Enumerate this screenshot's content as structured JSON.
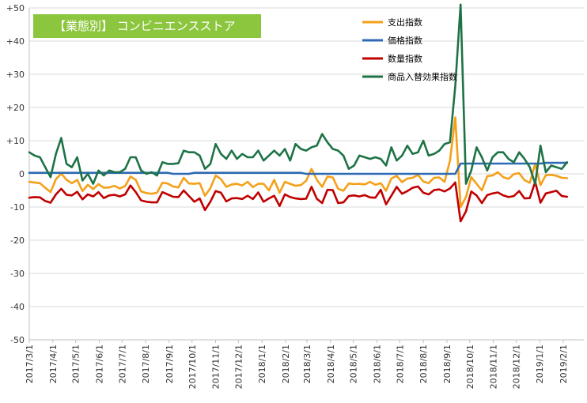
{
  "banner": {
    "label": "【業態別】 コンビニエンスストア"
  },
  "chart_data": {
    "type": "line",
    "title": "【業態別】 コンビニエンスストア",
    "xlabel": "",
    "ylabel": "",
    "ylim": [
      -50,
      50
    ],
    "y_ticks": [
      50,
      40,
      30,
      20,
      10,
      0,
      -10,
      -20,
      -30,
      -40,
      -50
    ],
    "y_tick_labels": [
      "+50",
      "+40",
      "+30",
      "+20",
      "+10",
      "0",
      "-10",
      "-20",
      "-30",
      "-40",
      "-50"
    ],
    "x_tick_labels": [
      "2017/3/1",
      "2017/4/1",
      "2017/5/1",
      "2017/6/1",
      "2017/7/1",
      "2017/8/1",
      "2017/9/1",
      "2017/10/1",
      "2017/11/1",
      "2017/12/1",
      "2018/1/1",
      "2018/2/1",
      "2018/3/1",
      "2018/4/1",
      "2018/5/1",
      "2018/6/1",
      "2018/7/1",
      "2018/8/1",
      "2018/9/1",
      "2018/10/1",
      "2018/11/1",
      "2018/12/1",
      "2019/1/1",
      "2019/2/1"
    ],
    "x_start": "2017/3/1",
    "x_end": "2019/2/28",
    "x_interval_days": 7,
    "grid": true,
    "legend_position": "top-right",
    "series": [
      {
        "name": "支出指数",
        "color": "#f5a01a",
        "values": [
          -2.4,
          -2.6,
          -2.8,
          -4.2,
          -5.5,
          -1.6,
          0.1,
          -1.8,
          -2.8,
          -1.8,
          -5.2,
          -3.3,
          -4.6,
          -3.1,
          -4.2,
          -4.1,
          -3.6,
          -4.4,
          -3.7,
          -0.8,
          -1.8,
          -5.3,
          -5.8,
          -6.0,
          -5.7,
          -2.7,
          -2.9,
          -3.8,
          -4.1,
          -1.2,
          -2.9,
          -3.0,
          -2.8,
          -6.6,
          -4.3,
          -0.5,
          -1.6,
          -3.9,
          -3.2,
          -3.0,
          -3.5,
          -2.4,
          -4.0,
          -3.0,
          -3.0,
          -5.0,
          -1.8,
          -5.7,
          -2.4,
          -3.0,
          -3.6,
          -3.4,
          -2.1,
          1.5,
          -1.8,
          -3.9,
          -0.8,
          -1.1,
          -4.5,
          -5.1,
          -2.9,
          -3.1,
          -3.0,
          -3.2,
          -2.4,
          -3.3,
          -2.8,
          -5.1,
          -1.4,
          -0.6,
          -2.5,
          -1.4,
          -1.2,
          -0.3,
          -2.3,
          -2.8,
          -1.2,
          -1.1,
          -2.4,
          4.0,
          17.0,
          -10.0,
          -7.0,
          -1.0,
          -3.0,
          -5.0,
          -0.7,
          -0.5,
          0.5,
          -1.0,
          -1.5,
          -0.1,
          0.2,
          -1.9,
          -2.7,
          3.0,
          -3.4,
          -0.4,
          -0.3,
          -0.6,
          -1.2,
          -1.3
        ]
      },
      {
        "name": "価格指数",
        "color": "#2e6ab3",
        "values": [
          0.3,
          0.3,
          0.3,
          0.3,
          0.3,
          0.3,
          0.3,
          0.3,
          0.3,
          0.3,
          0.3,
          0.3,
          0.3,
          0.3,
          0.3,
          0.3,
          0.3,
          0.3,
          0.3,
          0.3,
          0.3,
          0.3,
          0.3,
          0.3,
          0.3,
          0.3,
          0.3,
          0.0,
          0.0,
          0.0,
          0.0,
          0.3,
          0.3,
          0.3,
          0.3,
          0.3,
          0.3,
          0.3,
          0.3,
          0.3,
          0.3,
          0.3,
          0.3,
          0.3,
          0.3,
          0.3,
          0.3,
          0.3,
          0.3,
          0.3,
          0.3,
          0.3,
          0.0,
          0.0,
          0.0,
          0.0,
          0.0,
          0.0,
          0.0,
          0.0,
          0.0,
          0.0,
          0.0,
          0.0,
          0.0,
          0.0,
          0.0,
          0.0,
          0.0,
          0.0,
          0.0,
          0.0,
          0.0,
          0.0,
          0.0,
          0.0,
          0.0,
          0.0,
          0.0,
          0.0,
          0.0,
          3.1,
          3.1,
          3.1,
          3.1,
          3.1,
          3.1,
          3.1,
          3.1,
          3.1,
          3.1,
          3.1,
          3.1,
          3.1,
          3.1,
          3.1,
          3.1,
          3.3,
          3.3,
          3.3,
          3.3,
          3.3
        ]
      },
      {
        "name": "数量指数",
        "color": "#c00000",
        "values": [
          -7.2,
          -7.0,
          -7.1,
          -8.2,
          -8.7,
          -6.2,
          -4.5,
          -6.3,
          -6.5,
          -5.4,
          -7.7,
          -6.2,
          -6.8,
          -5.5,
          -7.3,
          -6.5,
          -6.3,
          -6.8,
          -6.2,
          -3.5,
          -5.5,
          -8.0,
          -8.4,
          -8.6,
          -8.6,
          -5.5,
          -6.2,
          -6.9,
          -7.0,
          -5.0,
          -6.7,
          -8.4,
          -7.4,
          -10.9,
          -8.4,
          -5.2,
          -5.7,
          -8.3,
          -7.4,
          -7.3,
          -7.6,
          -6.6,
          -7.6,
          -5.6,
          -8.4,
          -7.4,
          -6.6,
          -9.7,
          -6.2,
          -7.0,
          -7.4,
          -7.6,
          -7.5,
          -3.9,
          -7.5,
          -8.8,
          -4.8,
          -4.9,
          -8.8,
          -8.6,
          -6.7,
          -6.5,
          -6.8,
          -6.4,
          -7.1,
          -7.2,
          -4.8,
          -9.2,
          -6.6,
          -3.9,
          -6.0,
          -5.2,
          -4.2,
          -3.8,
          -5.7,
          -6.2,
          -4.9,
          -4.7,
          -5.3,
          -4.4,
          -2.6,
          -14.3,
          -11.3,
          -5.3,
          -6.5,
          -8.8,
          -6.4,
          -5.9,
          -5.6,
          -6.5,
          -7.0,
          -6.7,
          -5.2,
          -7.4,
          -7.3,
          -2.4,
          -8.7,
          -5.9,
          -5.5,
          -5.1,
          -6.7,
          -6.9
        ]
      },
      {
        "name": "商品入替効果指数",
        "color": "#1e7346",
        "values": [
          6.5,
          5.5,
          5.0,
          2.0,
          -1.0,
          6.0,
          10.8,
          3.0,
          2.0,
          5.0,
          -2.0,
          0.0,
          -3.0,
          1.0,
          -0.5,
          1.0,
          0.5,
          0.5,
          1.5,
          5.0,
          5.0,
          1.0,
          0.0,
          0.5,
          -0.5,
          3.5,
          3.0,
          3.0,
          3.2,
          7.0,
          6.5,
          6.5,
          5.5,
          1.5,
          3.0,
          9.0,
          6.0,
          4.5,
          7.0,
          4.5,
          6.0,
          5.0,
          5.0,
          7.0,
          4.0,
          5.5,
          7.0,
          5.5,
          7.5,
          4.0,
          9.0,
          7.5,
          7.0,
          8.0,
          8.5,
          12.0,
          9.5,
          7.5,
          7.0,
          5.5,
          1.5,
          2.5,
          5.5,
          5.0,
          4.5,
          5.0,
          4.5,
          2.5,
          8.0,
          4.0,
          5.5,
          8.5,
          6.0,
          6.5,
          10.0,
          5.5,
          6.0,
          7.0,
          9.0,
          9.5,
          26.5,
          51.0,
          -3.0,
          1.0,
          8.0,
          5.0,
          1.0,
          5.0,
          6.5,
          6.5,
          4.5,
          3.5,
          6.5,
          4.5,
          2.0,
          -3.0,
          8.5,
          0.5,
          2.5,
          2.0,
          1.5,
          3.5
        ]
      }
    ]
  }
}
